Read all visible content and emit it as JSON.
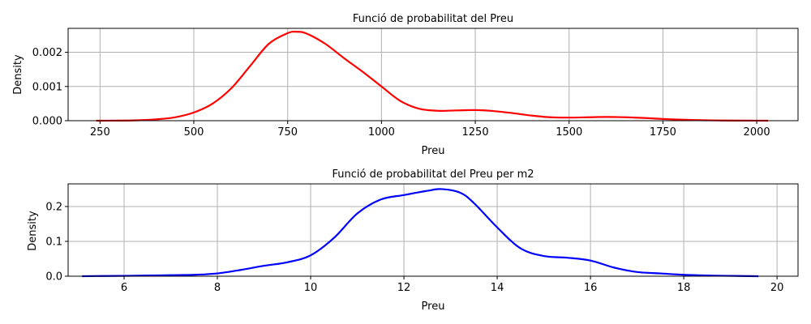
{
  "chart_data": [
    {
      "type": "line",
      "title": "Funció de probabilitat del Preu",
      "xlabel": "Preu",
      "ylabel": "Density",
      "xlim": [
        165,
        2110
      ],
      "ylim": [
        0,
        0.0027
      ],
      "xticks": [
        250,
        500,
        750,
        1000,
        1250,
        1500,
        1750,
        2000
      ],
      "xtick_labels": [
        "250",
        "500",
        "750",
        "1000",
        "1250",
        "1500",
        "1750",
        "2000"
      ],
      "yticks": [
        0,
        0.001,
        0.002
      ],
      "ytick_labels": [
        "0.000",
        "0.001",
        "0.002"
      ],
      "grid": true,
      "color": "#ff0000",
      "series": [
        {
          "x": [
            240,
            300,
            350,
            400,
            450,
            500,
            550,
            600,
            650,
            700,
            750,
            775,
            800,
            850,
            900,
            950,
            1000,
            1050,
            1100,
            1150,
            1200,
            1250,
            1300,
            1350,
            1400,
            1450,
            1500,
            1550,
            1600,
            1650,
            1700,
            1750,
            1800,
            1850,
            1900,
            1950,
            2000,
            2030
          ],
          "y": [
            0.0,
            3e-06,
            1.2e-05,
            4e-05,
            0.0001,
            0.00024,
            0.0005,
            0.00095,
            0.0016,
            0.00225,
            0.00256,
            0.0026,
            0.00255,
            0.00225,
            0.00183,
            0.00143,
            0.001,
            0.00058,
            0.00035,
            0.00029,
            0.0003,
            0.00031,
            0.00028,
            0.00022,
            0.00015,
            0.0001,
            9e-05,
            0.0001,
            0.00011,
            0.0001,
            8e-05,
            5e-05,
            3e-05,
            1.5e-05,
            7e-06,
            3e-06,
            1e-06,
            0.0
          ]
        }
      ]
    },
    {
      "type": "line",
      "title": "Funció de probabilitat del Preu per m2",
      "xlabel": "Preu",
      "ylabel": "Density",
      "xlim": [
        4.8,
        20.45
      ],
      "ylim": [
        0,
        0.265
      ],
      "xticks": [
        6,
        8,
        10,
        12,
        14,
        16,
        18,
        20
      ],
      "xtick_labels": [
        "6",
        "8",
        "10",
        "12",
        "14",
        "16",
        "18",
        "20"
      ],
      "yticks": [
        0,
        0.1,
        0.2
      ],
      "ytick_labels": [
        "0.0",
        "0.1",
        "0.2"
      ],
      "grid": true,
      "color": "#0000ff",
      "series": [
        {
          "x": [
            5.1,
            5.5,
            6.0,
            6.5,
            7.0,
            7.5,
            8.0,
            8.5,
            9.0,
            9.5,
            10.0,
            10.5,
            11.0,
            11.5,
            12.0,
            12.5,
            12.8,
            13.2,
            13.5,
            14.0,
            14.5,
            15.0,
            15.5,
            16.0,
            16.5,
            17.0,
            17.5,
            18.0,
            18.5,
            19.0,
            19.6
          ],
          "y": [
            0.0,
            0.0005,
            0.001,
            0.002,
            0.003,
            0.004,
            0.008,
            0.018,
            0.03,
            0.04,
            0.06,
            0.11,
            0.18,
            0.22,
            0.233,
            0.245,
            0.25,
            0.24,
            0.21,
            0.14,
            0.08,
            0.058,
            0.053,
            0.045,
            0.025,
            0.012,
            0.008,
            0.004,
            0.002,
            0.001,
            0.0
          ]
        }
      ]
    }
  ]
}
